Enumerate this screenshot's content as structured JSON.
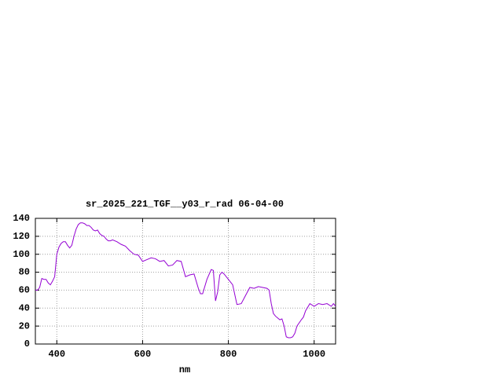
{
  "chart_data": {
    "type": "line",
    "title": "sr_2025_221_TGF__y03_r_rad 06-04-00",
    "x_label": "nm",
    "x": [
      350,
      355,
      360,
      365,
      370,
      375,
      380,
      385,
      390,
      395,
      400,
      405,
      410,
      415,
      420,
      425,
      430,
      435,
      440,
      445,
      450,
      455,
      460,
      465,
      470,
      475,
      480,
      485,
      490,
      495,
      500,
      505,
      510,
      515,
      520,
      525,
      530,
      540,
      550,
      560,
      570,
      580,
      590,
      600,
      610,
      620,
      630,
      640,
      650,
      660,
      670,
      680,
      690,
      700,
      710,
      720,
      730,
      735,
      740,
      750,
      760,
      765,
      770,
      775,
      780,
      785,
      790,
      800,
      810,
      815,
      820,
      830,
      840,
      850,
      860,
      870,
      880,
      890,
      895,
      900,
      905,
      910,
      920,
      925,
      930,
      935,
      940,
      945,
      950,
      955,
      960,
      970,
      975,
      980,
      990,
      1000,
      1010,
      1020,
      1030,
      1040,
      1045,
      1050
    ],
    "series": [
      {
        "color": "#9400d3",
        "values": [
          60,
          60,
          63,
          73,
          72,
          72,
          68,
          66,
          70,
          75,
          100,
          108,
          112,
          114,
          114,
          110,
          107,
          110,
          120,
          128,
          133,
          135,
          135,
          134,
          132,
          132,
          130,
          127,
          126,
          127,
          123,
          121,
          120,
          117,
          115,
          115,
          116,
          114,
          111,
          109,
          104,
          100,
          99,
          92,
          94,
          96,
          95,
          92,
          93,
          87,
          88,
          93,
          92,
          75,
          77,
          78,
          62,
          56,
          56,
          72,
          83,
          82,
          48,
          58,
          77,
          80,
          78,
          72,
          66,
          55,
          44,
          45,
          54,
          63,
          62,
          64,
          63,
          62,
          60,
          45,
          34,
          31,
          27,
          28,
          20,
          8,
          7,
          7,
          8,
          12,
          20,
          27,
          30,
          37,
          45,
          42,
          45,
          44,
          45,
          42,
          45,
          42
        ]
      }
    ],
    "xlim": [
      350,
      1050
    ],
    "ylim": [
      0,
      140
    ],
    "xticks": [
      400,
      600,
      800,
      1000
    ],
    "yticks": [
      0,
      20,
      40,
      60,
      80,
      100,
      120,
      140
    ],
    "grid": true
  }
}
